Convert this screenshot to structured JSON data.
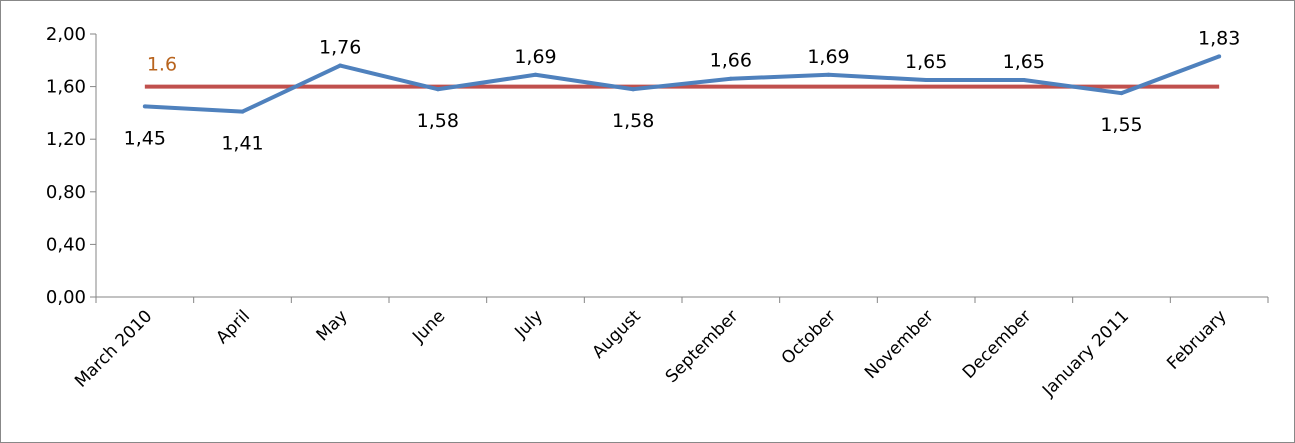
{
  "chart_data": {
    "type": "line",
    "title": "",
    "xlabel": "",
    "ylabel": "",
    "categories": [
      "March 2010",
      "April",
      "May",
      "June",
      "July",
      "August",
      "September",
      "October",
      "November",
      "December",
      "January 2011",
      "February"
    ],
    "series": [
      {
        "values": [
          1.45,
          1.41,
          1.76,
          1.58,
          1.69,
          1.58,
          1.66,
          1.69,
          1.65,
          1.65,
          1.55,
          1.83
        ],
        "data_labels": [
          "1,45",
          "1,41",
          "1,76",
          "1,58",
          "1,69",
          "1,58",
          "1,66",
          "1,69",
          "1,65",
          "1,65",
          "1,55",
          "1,83"
        ],
        "color": "#4f81bd"
      }
    ],
    "reference_line": {
      "value": 1.6,
      "label": "1.6",
      "color": "#c0504d",
      "label_color": "#b8641e"
    },
    "ylim": [
      0,
      2
    ],
    "yticks": [
      0,
      0.4,
      0.8,
      1.2,
      1.6,
      2.0
    ],
    "ytick_labels": [
      "0,00",
      "0,40",
      "0,80",
      "1,20",
      "1,60",
      "2,00"
    ],
    "grid": false,
    "legend": "none"
  }
}
